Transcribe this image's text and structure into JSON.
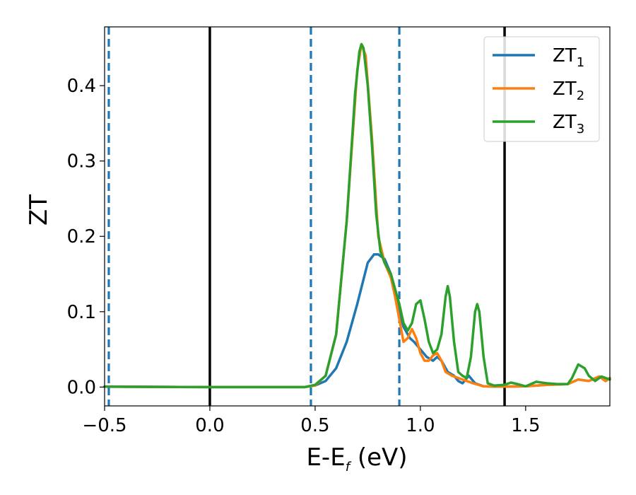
{
  "chart_data": {
    "type": "line",
    "title": "",
    "xlabel_main": "E-E",
    "xlabel_sub": "f",
    "xlabel_unit": " (eV)",
    "ylabel": "ZT",
    "xlim": [
      -0.5,
      1.9
    ],
    "ylim": [
      -0.025,
      0.478
    ],
    "grid": false,
    "legend_position": "top-right",
    "x_ticks": [
      {
        "value": -0.5,
        "label": "−0.5"
      },
      {
        "value": 0.0,
        "label": "0.0"
      },
      {
        "value": 0.5,
        "label": "0.5"
      },
      {
        "value": 1.0,
        "label": "1.0"
      },
      {
        "value": 1.5,
        "label": "1.5"
      }
    ],
    "y_ticks": [
      {
        "value": 0.0,
        "label": "0.0"
      },
      {
        "value": 0.1,
        "label": "0.1"
      },
      {
        "value": 0.2,
        "label": "0.2"
      },
      {
        "value": 0.3,
        "label": "0.3"
      },
      {
        "value": 0.4,
        "label": "0.4"
      }
    ],
    "vertical_lines": [
      {
        "x": -0.48,
        "style": "dashed",
        "color": "#1f77b4"
      },
      {
        "x": 0.0,
        "style": "solid",
        "color": "#000000"
      },
      {
        "x": 0.48,
        "style": "dashed",
        "color": "#1f77b4"
      },
      {
        "x": 0.9,
        "style": "dashed",
        "color": "#1f77b4"
      },
      {
        "x": 1.4,
        "style": "solid",
        "color": "#000000"
      }
    ],
    "series": [
      {
        "name_main": "ZT",
        "name_sub": "1",
        "color": "#1f77b4",
        "points": [
          [
            -0.5,
            0.0005
          ],
          [
            0.0,
            0.0
          ],
          [
            0.45,
            0.0
          ],
          [
            0.5,
            0.002
          ],
          [
            0.55,
            0.008
          ],
          [
            0.6,
            0.025
          ],
          [
            0.65,
            0.06
          ],
          [
            0.7,
            0.11
          ],
          [
            0.75,
            0.165
          ],
          [
            0.78,
            0.176
          ],
          [
            0.8,
            0.176
          ],
          [
            0.83,
            0.17
          ],
          [
            0.86,
            0.15
          ],
          [
            0.88,
            0.125
          ],
          [
            0.9,
            0.1
          ],
          [
            0.92,
            0.08
          ],
          [
            0.95,
            0.065
          ],
          [
            0.97,
            0.06
          ],
          [
            1.0,
            0.05
          ],
          [
            1.03,
            0.04
          ],
          [
            1.06,
            0.035
          ],
          [
            1.08,
            0.04
          ],
          [
            1.1,
            0.035
          ],
          [
            1.13,
            0.02
          ],
          [
            1.16,
            0.015
          ],
          [
            1.18,
            0.008
          ],
          [
            1.2,
            0.005
          ],
          [
            1.23,
            0.015
          ],
          [
            1.26,
            0.005
          ],
          [
            1.3,
            0.001
          ],
          [
            1.35,
            0.0005
          ],
          [
            1.4,
            0.0005
          ],
          [
            1.5,
            0.001
          ],
          [
            1.6,
            0.003
          ],
          [
            1.7,
            0.004
          ],
          [
            1.75,
            0.01
          ],
          [
            1.8,
            0.008
          ],
          [
            1.85,
            0.014
          ],
          [
            1.88,
            0.008
          ],
          [
            1.9,
            0.012
          ]
        ]
      },
      {
        "name_main": "ZT",
        "name_sub": "2",
        "color": "#ff7f0e",
        "points": [
          [
            -0.5,
            0.0005
          ],
          [
            0.0,
            0.0
          ],
          [
            0.45,
            0.0
          ],
          [
            0.5,
            0.002
          ],
          [
            0.55,
            0.015
          ],
          [
            0.6,
            0.07
          ],
          [
            0.65,
            0.22
          ],
          [
            0.7,
            0.42
          ],
          [
            0.72,
            0.455
          ],
          [
            0.74,
            0.44
          ],
          [
            0.77,
            0.33
          ],
          [
            0.8,
            0.2
          ],
          [
            0.83,
            0.165
          ],
          [
            0.86,
            0.145
          ],
          [
            0.88,
            0.12
          ],
          [
            0.9,
            0.09
          ],
          [
            0.92,
            0.06
          ],
          [
            0.94,
            0.065
          ],
          [
            0.96,
            0.077
          ],
          [
            0.98,
            0.065
          ],
          [
            1.0,
            0.045
          ],
          [
            1.02,
            0.035
          ],
          [
            1.04,
            0.035
          ],
          [
            1.06,
            0.042
          ],
          [
            1.08,
            0.045
          ],
          [
            1.1,
            0.035
          ],
          [
            1.12,
            0.02
          ],
          [
            1.15,
            0.015
          ],
          [
            1.2,
            0.01
          ],
          [
            1.25,
            0.005
          ],
          [
            1.3,
            0.001
          ],
          [
            1.4,
            0.0005
          ],
          [
            1.5,
            0.001
          ],
          [
            1.6,
            0.003
          ],
          [
            1.7,
            0.004
          ],
          [
            1.75,
            0.01
          ],
          [
            1.8,
            0.008
          ],
          [
            1.85,
            0.014
          ],
          [
            1.88,
            0.008
          ],
          [
            1.9,
            0.012
          ]
        ]
      },
      {
        "name_main": "ZT",
        "name_sub": "3",
        "color": "#2ca02c",
        "points": [
          [
            -0.5,
            0.0005
          ],
          [
            0.0,
            0.0
          ],
          [
            0.45,
            0.0
          ],
          [
            0.5,
            0.003
          ],
          [
            0.55,
            0.015
          ],
          [
            0.6,
            0.07
          ],
          [
            0.65,
            0.22
          ],
          [
            0.69,
            0.39
          ],
          [
            0.71,
            0.445
          ],
          [
            0.72,
            0.455
          ],
          [
            0.73,
            0.45
          ],
          [
            0.75,
            0.4
          ],
          [
            0.77,
            0.32
          ],
          [
            0.79,
            0.23
          ],
          [
            0.81,
            0.18
          ],
          [
            0.83,
            0.165
          ],
          [
            0.86,
            0.15
          ],
          [
            0.88,
            0.13
          ],
          [
            0.9,
            0.11
          ],
          [
            0.92,
            0.085
          ],
          [
            0.94,
            0.075
          ],
          [
            0.96,
            0.085
          ],
          [
            0.98,
            0.11
          ],
          [
            1.0,
            0.115
          ],
          [
            1.02,
            0.09
          ],
          [
            1.04,
            0.06
          ],
          [
            1.06,
            0.045
          ],
          [
            1.08,
            0.05
          ],
          [
            1.1,
            0.07
          ],
          [
            1.12,
            0.12
          ],
          [
            1.13,
            0.134
          ],
          [
            1.14,
            0.12
          ],
          [
            1.16,
            0.06
          ],
          [
            1.18,
            0.02
          ],
          [
            1.2,
            0.015
          ],
          [
            1.22,
            0.012
          ],
          [
            1.24,
            0.04
          ],
          [
            1.26,
            0.1
          ],
          [
            1.27,
            0.11
          ],
          [
            1.28,
            0.1
          ],
          [
            1.3,
            0.04
          ],
          [
            1.32,
            0.005
          ],
          [
            1.35,
            0.002
          ],
          [
            1.4,
            0.003
          ],
          [
            1.43,
            0.006
          ],
          [
            1.46,
            0.004
          ],
          [
            1.5,
            0.001
          ],
          [
            1.55,
            0.007
          ],
          [
            1.6,
            0.005
          ],
          [
            1.65,
            0.004
          ],
          [
            1.7,
            0.004
          ],
          [
            1.72,
            0.012
          ],
          [
            1.75,
            0.03
          ],
          [
            1.78,
            0.025
          ],
          [
            1.8,
            0.015
          ],
          [
            1.83,
            0.008
          ],
          [
            1.86,
            0.014
          ],
          [
            1.9,
            0.01
          ]
        ]
      }
    ]
  }
}
